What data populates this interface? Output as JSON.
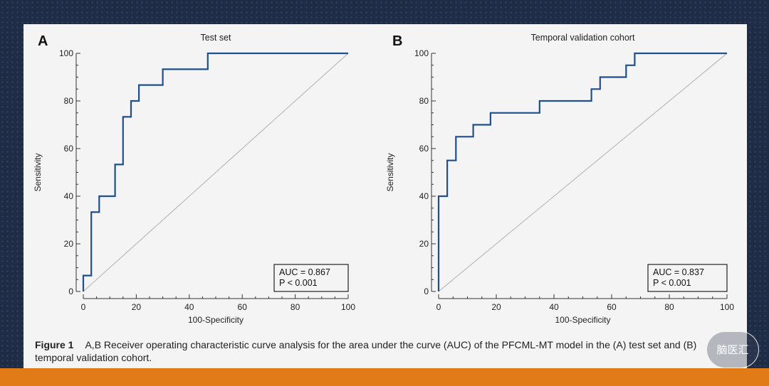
{
  "figure": {
    "caption_label": "Figure 1",
    "caption_text": "A,B Receiver operating characteristic curve analysis for the area under the curve (AUC) of the PFCML-MT model in the (A) test set and (B) temporal validation cohort."
  },
  "watermark": {
    "text": "脑医汇"
  },
  "colors": {
    "roc_line": "#1f4f8c",
    "diagonal": "#b0b0b0",
    "slide_bg": "#f4f4f4",
    "page_bg": "#1f2c45",
    "accent_bar": "#e07b18"
  },
  "chart_data": [
    {
      "type": "line",
      "panel": "A",
      "title": "Test set",
      "xlabel": "100-Specificity",
      "ylabel": "Sensitivity",
      "xlim": [
        0,
        100
      ],
      "ylim": [
        0,
        100
      ],
      "x_ticks": [
        0,
        20,
        40,
        60,
        80,
        100
      ],
      "y_ticks": [
        0,
        20,
        40,
        60,
        80,
        100
      ],
      "grid": false,
      "diagonal_reference": true,
      "stats": [
        "AUC = 0.867",
        "P < 0.001"
      ],
      "series": [
        {
          "x": [
            0,
            0,
            3,
            3,
            6,
            6,
            12,
            12,
            15,
            15,
            18,
            18,
            21,
            21,
            30,
            30,
            47,
            47,
            100
          ],
          "y": [
            0,
            6.7,
            6.7,
            33.3,
            33.3,
            40,
            40,
            53.3,
            53.3,
            73.3,
            73.3,
            80,
            80,
            86.7,
            86.7,
            93.3,
            93.3,
            100,
            100
          ]
        }
      ]
    },
    {
      "type": "line",
      "panel": "B",
      "title": "Temporal validation cohort",
      "xlabel": "100-Specificity",
      "ylabel": "Sensitivity",
      "xlim": [
        0,
        100
      ],
      "ylim": [
        0,
        100
      ],
      "x_ticks": [
        0,
        20,
        40,
        60,
        80,
        100
      ],
      "y_ticks": [
        0,
        20,
        40,
        60,
        80,
        100
      ],
      "grid": false,
      "diagonal_reference": true,
      "stats": [
        "AUC = 0.837",
        "P < 0.001"
      ],
      "series": [
        {
          "x": [
            0,
            0,
            3,
            3,
            6,
            6,
            12,
            12,
            18,
            18,
            35,
            35,
            53,
            53,
            56,
            56,
            65,
            65,
            68,
            68,
            100
          ],
          "y": [
            0,
            40,
            40,
            55,
            55,
            65,
            65,
            70,
            70,
            75,
            75,
            80,
            80,
            85,
            85,
            90,
            90,
            95,
            95,
            100,
            100
          ]
        }
      ]
    }
  ]
}
